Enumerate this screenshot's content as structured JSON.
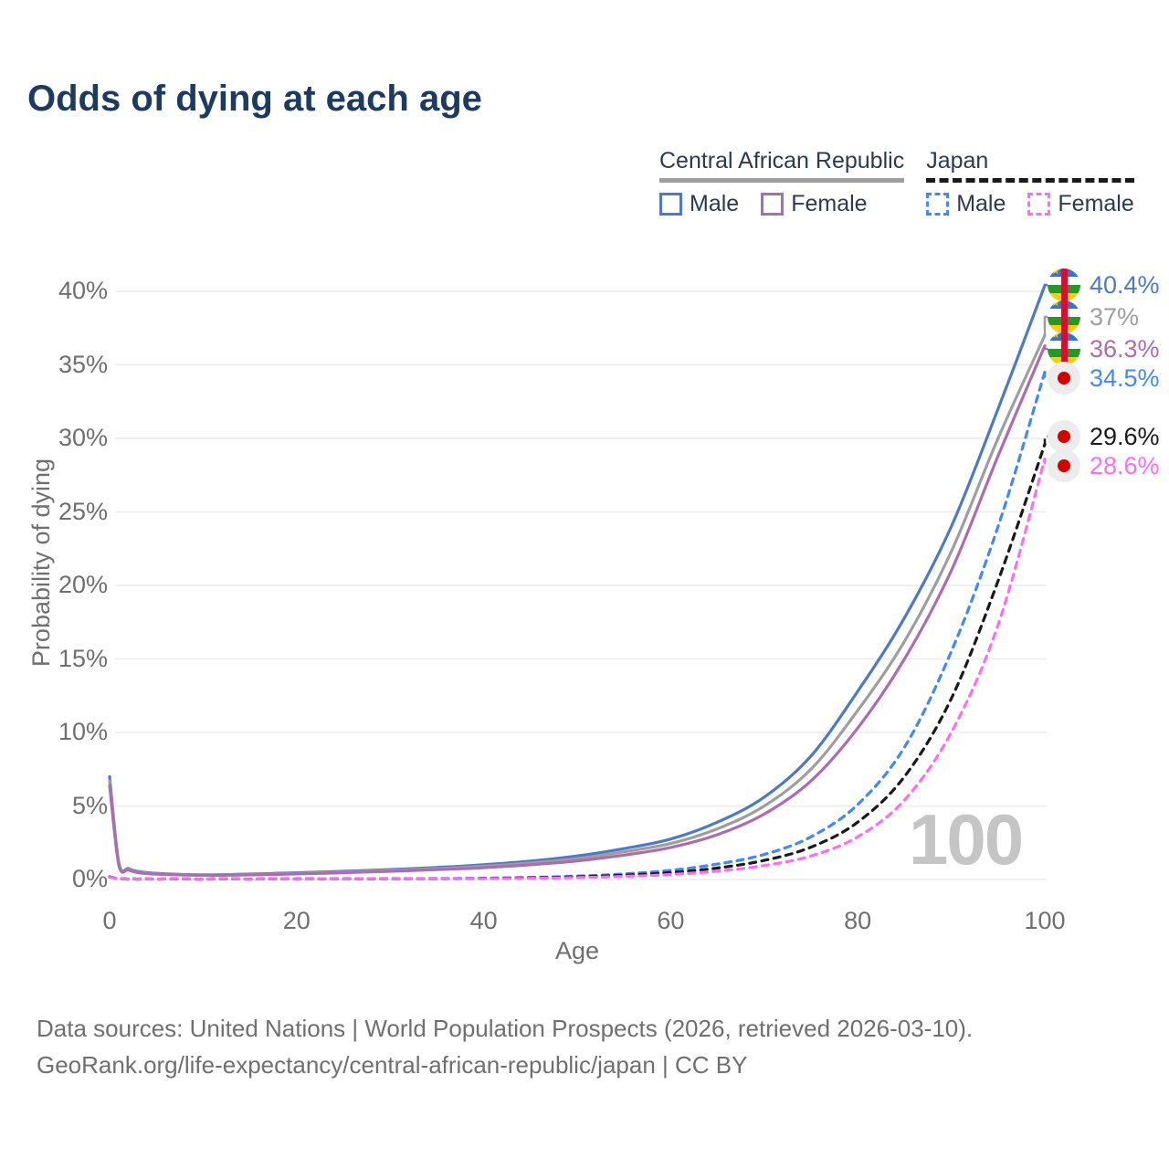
{
  "title": "Odds of dying at each age",
  "watermark": "100",
  "footer": {
    "line1": "Data sources: United Nations | World Population Prospects (2026, retrieved 2026-03-10).",
    "line2": "GeoRank.org/life-expectancy/central-african-republic/japan | CC BY"
  },
  "colors": {
    "car_male": "#4e79c7",
    "car_both": "#9e9e9e",
    "car_female": "#ad6bb0",
    "japan_male": "#4289f5",
    "japan_both": "#1a1a1a",
    "japan_female": "#fb6ef2",
    "grid": "#ececec",
    "axis_text": "#6f6f6f",
    "title_text": "#1d3a60",
    "watermark_text": "#c5c5c5"
  },
  "legend": {
    "groups": [
      {
        "title": "Central African Republic",
        "line_style": "solid",
        "items": [
          {
            "label": "Male",
            "color": "#4e79c7"
          },
          {
            "label": "Female",
            "color": "#ad6bb0"
          }
        ]
      },
      {
        "title": "Japan",
        "line_style": "dashed",
        "items": [
          {
            "label": "Male",
            "color": "#4289f5"
          },
          {
            "label": "Female",
            "color": "#fb6ef2"
          }
        ]
      }
    ]
  },
  "axes": {
    "x_label": "Age",
    "y_label": "Probability of dying",
    "x_ticks": [
      0,
      20,
      40,
      60,
      80,
      100
    ],
    "y_ticks": [
      {
        "label": "0%",
        "value": 0
      },
      {
        "label": "5%",
        "value": 5
      },
      {
        "label": "10%",
        "value": 10
      },
      {
        "label": "15%",
        "value": 15
      },
      {
        "label": "20%",
        "value": 20
      },
      {
        "label": "25%",
        "value": 25
      },
      {
        "label": "30%",
        "value": 30
      },
      {
        "label": "35%",
        "value": 35
      },
      {
        "label": "40%",
        "value": 40
      }
    ],
    "x_range": [
      0,
      100
    ],
    "y_range": [
      0,
      40
    ]
  },
  "chart_data": {
    "type": "line",
    "title": "Odds of dying at each age",
    "xlabel": "Age",
    "ylabel": "Probability of dying",
    "legend_position": "top-right",
    "grid": "horizontal",
    "x": [
      0,
      1,
      2,
      3,
      5,
      10,
      15,
      20,
      25,
      30,
      35,
      40,
      45,
      50,
      55,
      60,
      65,
      70,
      75,
      80,
      85,
      90,
      95,
      100
    ],
    "series": [
      {
        "name": "Central African Republic - Male",
        "country": "Central African Republic",
        "sex": "Male",
        "color": "#4e79c7",
        "dashed": false,
        "flag": "caf",
        "end_label": "40.4%",
        "end_value": 40.4,
        "values": [
          7.0,
          1.1,
          0.75,
          0.55,
          0.42,
          0.32,
          0.37,
          0.46,
          0.56,
          0.68,
          0.82,
          1.0,
          1.25,
          1.6,
          2.1,
          2.75,
          3.9,
          5.6,
          8.4,
          12.8,
          17.8,
          24.0,
          32.0,
          40.4
        ]
      },
      {
        "name": "Central African Republic - Both sexes",
        "country": "Central African Republic",
        "sex": "Both sexes",
        "color": "#9e9e9e",
        "dashed": false,
        "flag": "caf",
        "end_label": "37%",
        "end_value": 37.0,
        "values": [
          6.7,
          1.0,
          0.7,
          0.5,
          0.39,
          0.3,
          0.34,
          0.42,
          0.51,
          0.62,
          0.74,
          0.9,
          1.12,
          1.42,
          1.88,
          2.45,
          3.45,
          5.0,
          7.5,
          11.5,
          16.2,
          22.3,
          30.0,
          37.0
        ]
      },
      {
        "name": "Central African Republic - Female",
        "country": "Central African Republic",
        "sex": "Female",
        "color": "#ad6bb0",
        "dashed": false,
        "flag": "caf",
        "end_label": "36.3%",
        "end_value": 36.3,
        "values": [
          6.4,
          0.95,
          0.65,
          0.47,
          0.36,
          0.28,
          0.31,
          0.38,
          0.46,
          0.56,
          0.67,
          0.8,
          1.0,
          1.26,
          1.66,
          2.18,
          3.05,
          4.45,
          6.7,
          10.3,
          15.0,
          21.0,
          28.8,
          36.3
        ]
      },
      {
        "name": "Japan - Male",
        "country": "Japan",
        "sex": "Male",
        "color": "#4289f5",
        "dashed": true,
        "flag": "jpn",
        "end_label": "34.5%",
        "end_value": 34.5,
        "values": [
          0.19,
          0.03,
          0.02,
          0.02,
          0.01,
          0.01,
          0.02,
          0.04,
          0.05,
          0.05,
          0.06,
          0.09,
          0.14,
          0.23,
          0.38,
          0.62,
          1.05,
          1.7,
          2.9,
          5.1,
          9.0,
          15.5,
          24.0,
          34.5
        ]
      },
      {
        "name": "Japan - Both sexes",
        "country": "Japan",
        "sex": "Both sexes",
        "color": "#1a1a1a",
        "dashed": true,
        "flag": "jpn",
        "end_label": "29.6%",
        "end_value": 29.6,
        "values": [
          0.17,
          0.03,
          0.02,
          0.01,
          0.01,
          0.01,
          0.02,
          0.03,
          0.04,
          0.04,
          0.05,
          0.07,
          0.11,
          0.18,
          0.29,
          0.47,
          0.78,
          1.3,
          2.2,
          3.9,
          7.0,
          12.3,
          20.3,
          29.6
        ]
      },
      {
        "name": "Japan - Female",
        "country": "Japan",
        "sex": "Female",
        "color": "#fb6ef2",
        "dashed": true,
        "flag": "jpn",
        "end_label": "28.6%",
        "end_value": 28.6,
        "values": [
          0.15,
          0.02,
          0.01,
          0.01,
          0.01,
          0.01,
          0.01,
          0.02,
          0.03,
          0.03,
          0.04,
          0.05,
          0.08,
          0.13,
          0.21,
          0.34,
          0.57,
          0.95,
          1.6,
          2.9,
          5.4,
          10.0,
          17.3,
          28.6
        ]
      }
    ]
  }
}
